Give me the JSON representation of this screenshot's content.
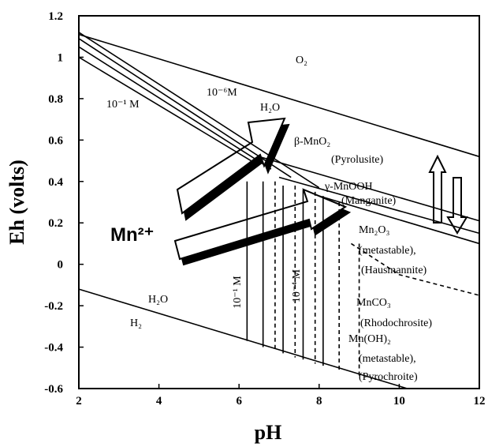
{
  "chart_data": {
    "type": "line",
    "x_label": "pH",
    "y_label": "Eh (volts)",
    "xlim": [
      2,
      12
    ],
    "ylim": [
      -0.6,
      1.2
    ],
    "xticks": [
      2,
      4,
      6,
      8,
      10,
      12
    ],
    "yticks": [
      1.2,
      1,
      0.8,
      0.6,
      0.4,
      0.2,
      0,
      -0.2,
      -0.4,
      -0.6
    ],
    "color": "#000000",
    "series": [
      {
        "x": [
          2,
          12
        ],
        "values": [
          1.11,
          0.52
        ]
      },
      {
        "x": [
          2,
          10.2
        ],
        "values": [
          -0.12,
          -0.6
        ]
      },
      {
        "x": [
          2,
          8.0
        ],
        "values": [
          1.12,
          0.37
        ]
      },
      {
        "x": [
          2,
          7.3
        ],
        "values": [
          1.09,
          0.42
        ]
      },
      {
        "x": [
          2,
          6.8
        ],
        "values": [
          1.05,
          0.46
        ]
      },
      {
        "x": [
          2,
          6.3
        ],
        "values": [
          1.0,
          0.5
        ]
      },
      {
        "x": [
          6.5,
          12
        ],
        "values": [
          0.52,
          0.21
        ]
      },
      {
        "x": [
          7.0,
          12
        ],
        "values": [
          0.42,
          0.15
        ]
      },
      {
        "x": [
          8.0,
          12
        ],
        "values": [
          0.33,
          0.1
        ]
      },
      {
        "x": [
          6.2,
          6.2
        ],
        "values": [
          0.4,
          -0.37
        ]
      },
      {
        "x": [
          6.6,
          6.6
        ],
        "values": [
          0.4,
          -0.4
        ]
      },
      {
        "x": [
          7.1,
          7.1
        ],
        "values": [
          0.38,
          -0.43
        ]
      },
      {
        "x": [
          7.6,
          7.6
        ],
        "values": [
          0.36,
          -0.46
        ]
      },
      {
        "x": [
          8.1,
          8.1
        ],
        "values": [
          0.33,
          -0.49
        ]
      },
      {
        "x": [
          6.9,
          6.9
        ],
        "values": [
          0.4,
          -0.42
        ],
        "style": "dashed"
      },
      {
        "x": [
          7.4,
          7.4
        ],
        "values": [
          0.38,
          -0.45
        ],
        "style": "dashed"
      },
      {
        "x": [
          7.9,
          7.9
        ],
        "values": [
          0.35,
          -0.48
        ],
        "style": "dashed"
      },
      {
        "x": [
          8.5,
          8.5
        ],
        "values": [
          0.3,
          -0.51
        ],
        "style": "dashed"
      },
      {
        "x": [
          9.0,
          9.0
        ],
        "values": [
          0.1,
          -0.54
        ],
        "style": "dashed"
      },
      {
        "x": [
          8.8,
          10,
          12
        ],
        "values": [
          0.1,
          -0.05,
          -0.15
        ],
        "style": "dashed"
      }
    ],
    "annotations": [
      "O₂",
      "10⁻⁶M",
      "10⁻¹ M",
      "H₂O",
      "β-MnO₂",
      "(Pyrolusite)",
      "γ-MnOOH",
      "(Manganite)",
      "Mn²⁺",
      "Mn₂O₃",
      "(metastable),",
      "(Hausmannite)",
      "MnCO₃",
      "(Rhodochrosite)",
      "Mn(OH)₂",
      "(metastable),",
      "(Pyrochroite)",
      "H₂O",
      "H₂",
      "10⁻¹ M",
      "10⁻⁴ M"
    ]
  }
}
